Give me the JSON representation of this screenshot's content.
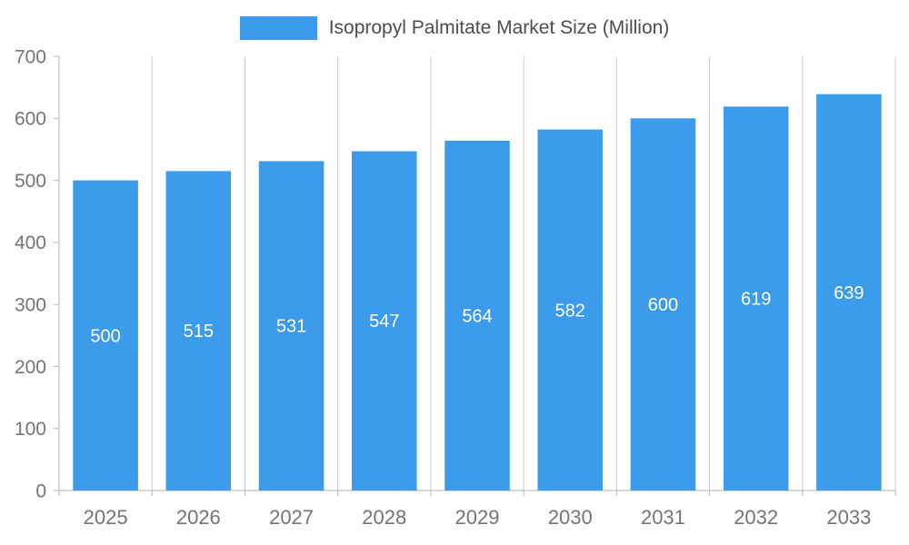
{
  "chart_data": {
    "type": "bar",
    "series_name": "Isopropyl Palmitate Market Size (Million)",
    "categories": [
      "2025",
      "2026",
      "2027",
      "2028",
      "2029",
      "2030",
      "2031",
      "2032",
      "2033"
    ],
    "values": [
      500,
      515,
      531,
      547,
      564,
      582,
      600,
      619,
      639
    ],
    "ylim": [
      0,
      700
    ],
    "yticks": [
      0,
      100,
      200,
      300,
      400,
      500,
      600,
      700
    ],
    "legend_position": "top",
    "grid": "vertical",
    "bar_color": "#3d9bec",
    "axis_color": "#b3b3b3",
    "grid_color": "#cccccc",
    "tick_label_color": "#757575",
    "legend_text_color": "#4d4d4d",
    "data_label_color": "#ffffff"
  }
}
